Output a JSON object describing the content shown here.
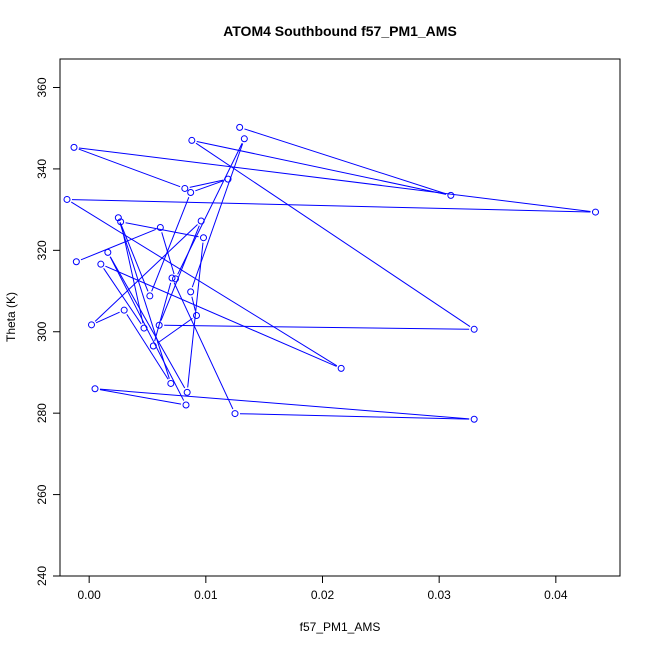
{
  "chart_data": {
    "type": "line",
    "title": "ATOM4 Southbound f57_PM1_AMS",
    "xlabel": "f57_PM1_AMS",
    "ylabel": "Theta (K)",
    "xlim": [
      -0.0025,
      0.0455
    ],
    "ylim": [
      240,
      367
    ],
    "xticks": [
      0.0,
      0.01,
      0.02,
      0.03,
      0.04
    ],
    "xtick_labels": [
      "0.00",
      "0.01",
      "0.02",
      "0.03",
      "0.04"
    ],
    "yticks": [
      240,
      260,
      280,
      300,
      320,
      340,
      360
    ],
    "ytick_labels": [
      "240",
      "260",
      "280",
      "300",
      "320",
      "340",
      "360"
    ],
    "grid": false,
    "legend": "none",
    "color": "#0000ff",
    "marker": "open-circle",
    "series": [
      {
        "x": [
          0.0129,
          0.031,
          0.0088,
          0.033,
          0.006,
          0.0096,
          0.0002,
          0.003,
          0.007,
          0.0025,
          0.0052,
          0.0087,
          0.0119,
          0.0082,
          -0.0013,
          0.0434,
          -0.0019,
          0.0216,
          0.001,
          0.0047,
          0.0027,
          0.0098,
          0.0084,
          0.0016,
          0.0083,
          0.0005,
          0.033,
          0.0125,
          0.0071,
          0.0055,
          0.0092,
          0.0087,
          0.0133,
          0.0074,
          0.0061,
          -0.0011
        ],
        "y": [
          350.2,
          333.5,
          347.0,
          300.6,
          301.6,
          327.2,
          301.7,
          305.3,
          287.3,
          328.0,
          308.8,
          334.2,
          337.5,
          335.2,
          345.3,
          329.4,
          332.5,
          291.0,
          316.6,
          300.9,
          327.0,
          323.1,
          285.1,
          319.5,
          282.0,
          286.0,
          278.5,
          279.9,
          313.2,
          296.5,
          304.0,
          309.8,
          347.4,
          313.0,
          325.6,
          317.2
        ]
      }
    ]
  }
}
